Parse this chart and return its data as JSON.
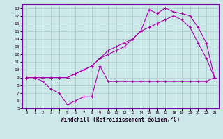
{
  "xlabel": "Windchill (Refroidissement éolien,°C)",
  "background_color": "#cce8e8",
  "grid_color": "#aacccc",
  "line_color": "#aa00aa",
  "xlim": [
    -0.5,
    23.5
  ],
  "ylim": [
    5,
    18.5
  ],
  "xticks": [
    0,
    1,
    2,
    3,
    4,
    5,
    6,
    7,
    8,
    9,
    10,
    11,
    12,
    13,
    14,
    15,
    16,
    17,
    18,
    19,
    20,
    21,
    22,
    23
  ],
  "yticks": [
    5,
    6,
    7,
    8,
    9,
    10,
    11,
    12,
    13,
    14,
    15,
    16,
    17,
    18
  ],
  "line1_x": [
    0,
    1,
    2,
    3,
    4,
    5,
    6,
    7,
    8,
    9,
    10,
    11,
    12,
    13,
    14,
    15,
    16,
    17,
    18,
    19,
    20,
    21,
    22,
    23
  ],
  "line1_y": [
    9.0,
    9.0,
    9.0,
    9.0,
    9.0,
    9.0,
    9.5,
    10.0,
    10.5,
    11.5,
    12.0,
    12.5,
    13.0,
    14.0,
    15.0,
    17.8,
    17.3,
    18.0,
    17.5,
    17.3,
    17.0,
    15.5,
    13.5,
    9.0
  ],
  "line2_x": [
    0,
    1,
    2,
    3,
    4,
    5,
    6,
    7,
    8,
    9,
    10,
    11,
    12,
    13,
    14,
    15,
    16,
    17,
    18,
    19,
    20,
    21,
    22,
    23
  ],
  "line2_y": [
    9.0,
    9.0,
    9.0,
    9.0,
    9.0,
    9.0,
    9.5,
    10.0,
    10.5,
    11.5,
    12.5,
    13.0,
    13.5,
    14.0,
    15.0,
    15.5,
    16.0,
    16.5,
    17.0,
    16.5,
    15.5,
    13.5,
    11.5,
    9.0
  ],
  "line3_x": [
    0,
    1,
    2,
    3,
    4,
    5,
    6,
    7,
    8,
    9,
    10,
    11,
    12,
    13,
    14,
    15,
    16,
    17,
    18,
    19,
    20,
    21,
    22,
    23
  ],
  "line3_y": [
    9.0,
    9.0,
    8.5,
    7.5,
    7.0,
    5.5,
    6.0,
    6.5,
    6.5,
    10.5,
    8.5,
    8.5,
    8.5,
    8.5,
    8.5,
    8.5,
    8.5,
    8.5,
    8.5,
    8.5,
    8.5,
    8.5,
    8.5,
    9.0
  ]
}
